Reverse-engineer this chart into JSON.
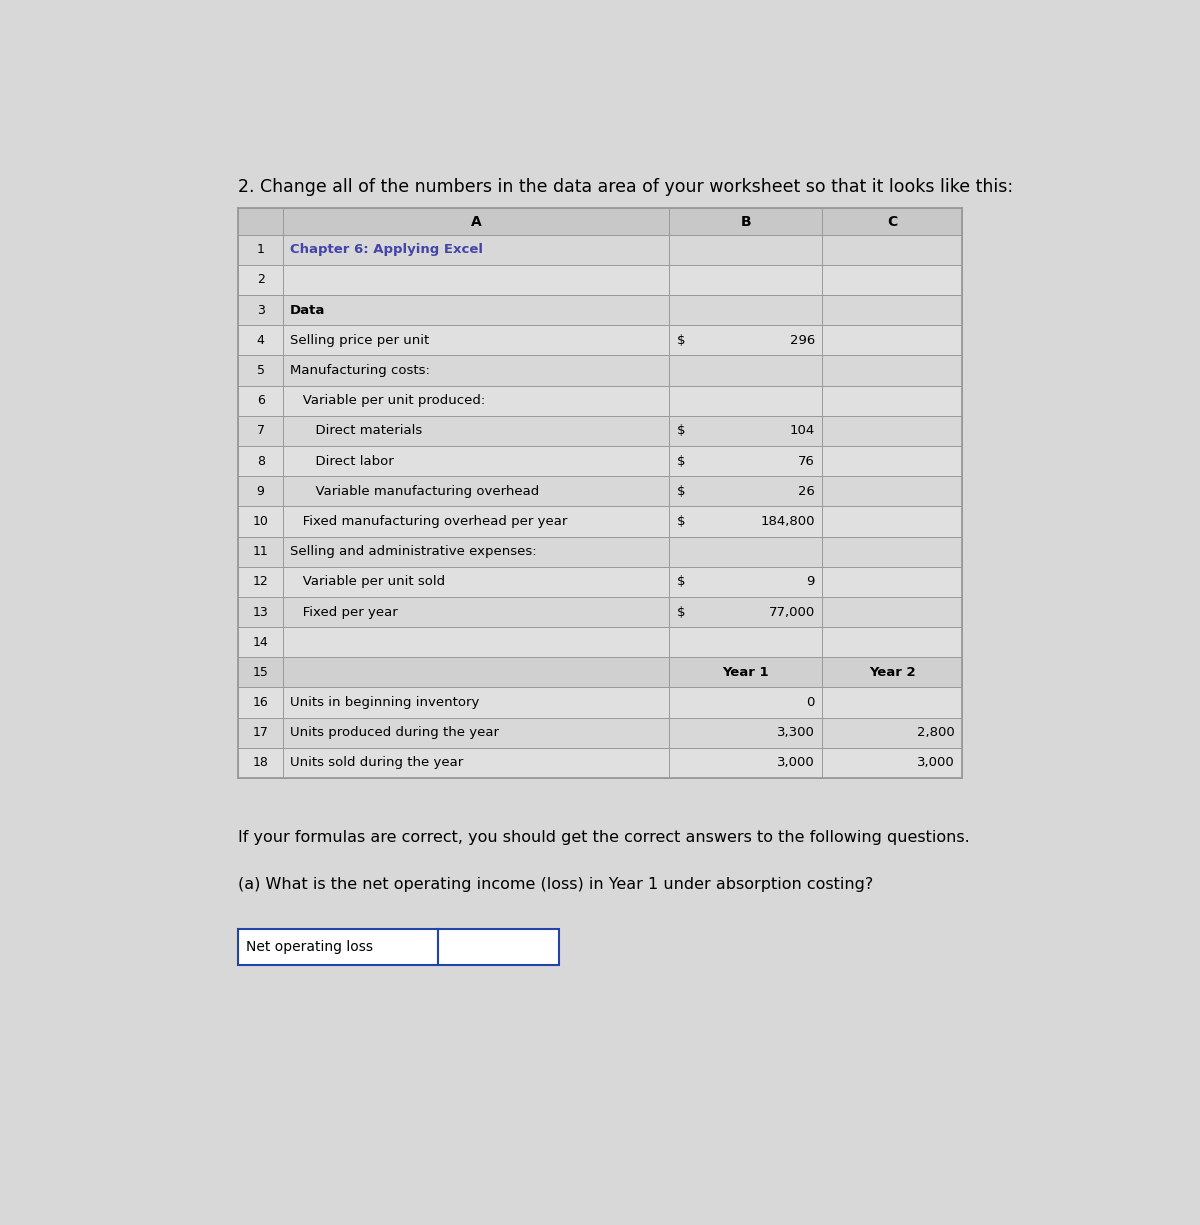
{
  "title": "2. Change all of the numbers in the data area of your worksheet so that it looks like this:",
  "title_fontsize": 12.5,
  "col_headers": [
    "A",
    "B",
    "C"
  ],
  "rows": [
    {
      "num": "1",
      "col_a": "Chapter 6: Applying Excel",
      "dollar": "",
      "col_b": "",
      "col_c": "",
      "a_bold": true,
      "a_color": "#4444AA"
    },
    {
      "num": "2",
      "col_a": "",
      "dollar": "",
      "col_b": "",
      "col_c": "",
      "a_bold": false,
      "a_color": "black"
    },
    {
      "num": "3",
      "col_a": "Data",
      "dollar": "",
      "col_b": "",
      "col_c": "",
      "a_bold": true,
      "a_color": "black"
    },
    {
      "num": "4",
      "col_a": "Selling price per unit",
      "dollar": "$",
      "col_b": "296",
      "col_c": "",
      "a_bold": false,
      "a_color": "black"
    },
    {
      "num": "5",
      "col_a": "Manufacturing costs:",
      "dollar": "",
      "col_b": "",
      "col_c": "",
      "a_bold": false,
      "a_color": "black"
    },
    {
      "num": "6",
      "col_a": "   Variable per unit produced:",
      "dollar": "",
      "col_b": "",
      "col_c": "",
      "a_bold": false,
      "a_color": "black"
    },
    {
      "num": "7",
      "col_a": "      Direct materials",
      "dollar": "$",
      "col_b": "104",
      "col_c": "",
      "a_bold": false,
      "a_color": "black"
    },
    {
      "num": "8",
      "col_a": "      Direct labor",
      "dollar": "$",
      "col_b": "76",
      "col_c": "",
      "a_bold": false,
      "a_color": "black"
    },
    {
      "num": "9",
      "col_a": "      Variable manufacturing overhead",
      "dollar": "$",
      "col_b": "26",
      "col_c": "",
      "a_bold": false,
      "a_color": "black"
    },
    {
      "num": "10",
      "col_a": "   Fixed manufacturing overhead per year",
      "dollar": "$",
      "col_b": "184,800",
      "col_c": "",
      "a_bold": false,
      "a_color": "black"
    },
    {
      "num": "11",
      "col_a": "Selling and administrative expenses:",
      "dollar": "",
      "col_b": "",
      "col_c": "",
      "a_bold": false,
      "a_color": "black"
    },
    {
      "num": "12",
      "col_a": "   Variable per unit sold",
      "dollar": "$",
      "col_b": "9",
      "col_c": "",
      "a_bold": false,
      "a_color": "black"
    },
    {
      "num": "13",
      "col_a": "   Fixed per year",
      "dollar": "$",
      "col_b": "77,000",
      "col_c": "",
      "a_bold": false,
      "a_color": "black"
    },
    {
      "num": "14",
      "col_a": "",
      "dollar": "",
      "col_b": "",
      "col_c": "",
      "a_bold": false,
      "a_color": "black"
    },
    {
      "num": "15",
      "col_a": "",
      "dollar": "",
      "col_b": "Year 1",
      "col_c": "Year 2",
      "a_bold": false,
      "a_color": "black",
      "is_year_header": true
    },
    {
      "num": "16",
      "col_a": "Units in beginning inventory",
      "dollar": "",
      "col_b": "0",
      "col_c": "",
      "a_bold": false,
      "a_color": "black"
    },
    {
      "num": "17",
      "col_a": "Units produced during the year",
      "dollar": "",
      "col_b": "3,300",
      "col_c": "2,800",
      "a_bold": false,
      "a_color": "black"
    },
    {
      "num": "18",
      "col_a": "Units sold during the year",
      "dollar": "",
      "col_b": "3,000",
      "col_c": "3,000",
      "a_bold": false,
      "a_color": "black"
    }
  ],
  "footer_text1": "If your formulas are correct, you should get the correct answers to the following questions.",
  "footer_text2": "(a) What is the net operating income (loss) in Year 1 under absorption costing?",
  "answer_label": "Net operating loss",
  "bg_color": "#D8D8D8",
  "row_bg_even": "#D8D8D8",
  "row_bg_odd": "#E0E0E0",
  "header_bg": "#C8C8C8",
  "year_header_bg": "#D0D0D0",
  "border_color": "#999999",
  "answer_box_color": "#2244AA"
}
